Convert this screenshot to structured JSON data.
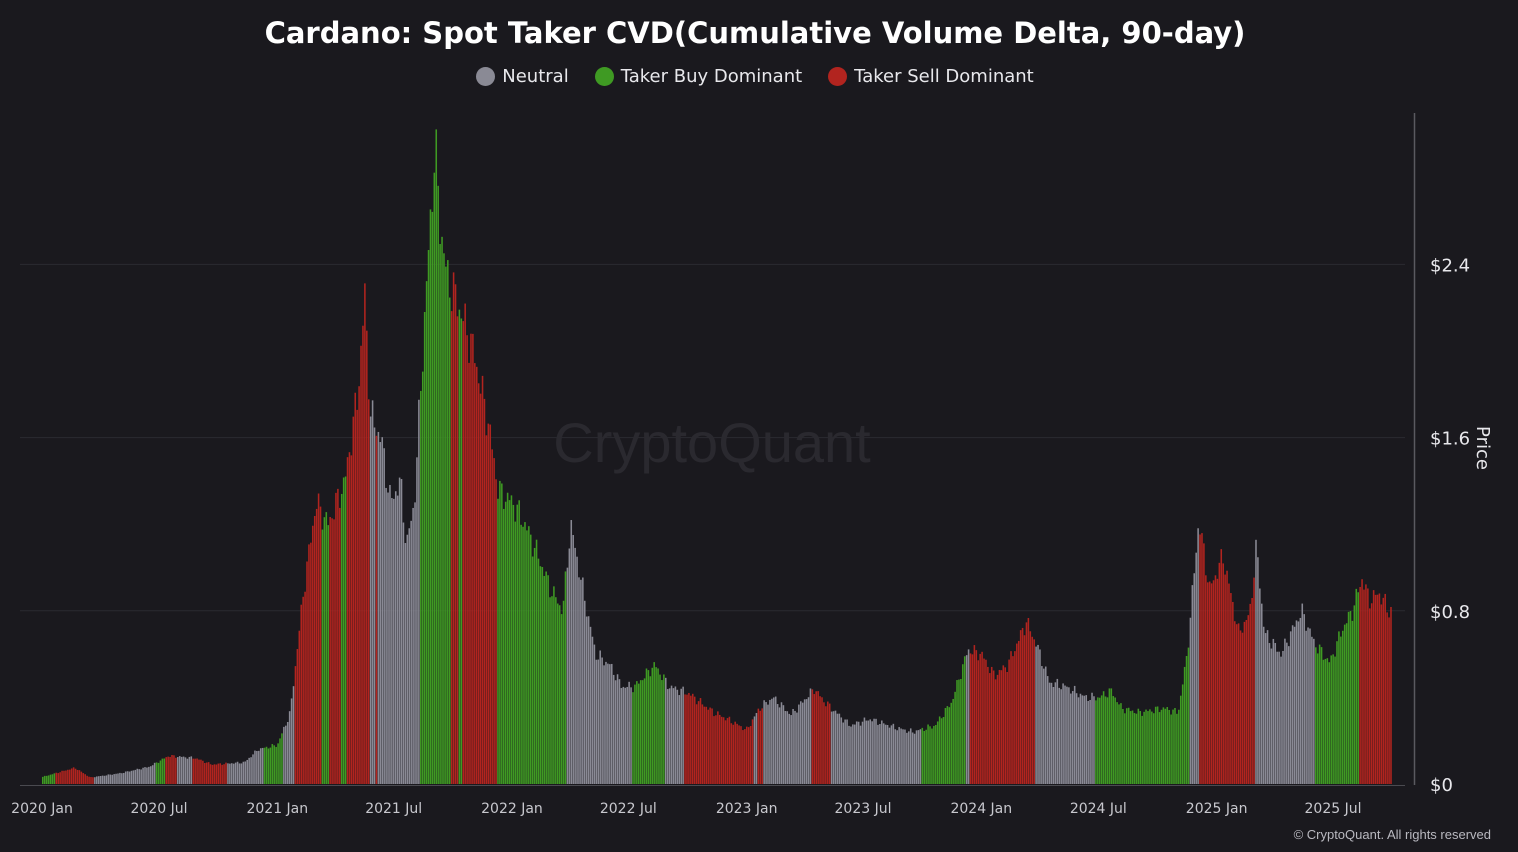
{
  "chart_data": {
    "type": "bar",
    "title": "Cardano: Spot Taker CVD(Cumulative Volume Delta, 90-day)",
    "ylabel": "Price",
    "ylim": [
      0,
      3.0
    ],
    "y_ticks": [
      "$0",
      "$0.8",
      "$1.6",
      "$2.4"
    ],
    "y_tick_values": [
      0,
      0.8,
      1.6,
      2.4
    ],
    "x_ticks": [
      "2020 Jan",
      "2020 Jul",
      "2021 Jan",
      "2021 Jul",
      "2022 Jan",
      "2022 Jul",
      "2023 Jan",
      "2023 Jul",
      "2024 Jan",
      "2024 Jul",
      "2025 Jan",
      "2025 Jul"
    ],
    "x_tick_dates": [
      "2020-01-01",
      "2020-07-01",
      "2021-01-01",
      "2021-07-01",
      "2022-01-01",
      "2022-07-01",
      "2023-01-01",
      "2023-07-01",
      "2024-01-01",
      "2024-07-01",
      "2025-01-01",
      "2025-07-01"
    ],
    "x_range": [
      "2020-01-01",
      "2025-10-01"
    ],
    "grid": true,
    "legend_position": "top-center",
    "watermark": "CryptoQuant",
    "series": [
      {
        "name": "Neutral",
        "color": "#8a8a95"
      },
      {
        "name": "Taker Buy Dominant",
        "color": "#3f9a23"
      },
      {
        "name": "Taker Sell Dominant",
        "color": "#b2241f"
      }
    ],
    "price_points": [
      [
        "2020-01-01",
        0.033
      ],
      [
        "2020-02-20",
        0.075
      ],
      [
        "2020-03-15",
        0.03
      ],
      [
        "2020-05-01",
        0.05
      ],
      [
        "2020-06-15",
        0.08
      ],
      [
        "2020-07-15",
        0.13
      ],
      [
        "2020-08-25",
        0.12
      ],
      [
        "2020-09-20",
        0.09
      ],
      [
        "2020-11-10",
        0.1
      ],
      [
        "2020-12-01",
        0.16
      ],
      [
        "2020-12-31",
        0.18
      ],
      [
        "2021-01-20",
        0.33
      ],
      [
        "2021-02-10",
        0.9
      ],
      [
        "2021-03-01",
        1.3
      ],
      [
        "2021-03-20",
        1.2
      ],
      [
        "2021-04-15",
        1.4
      ],
      [
        "2021-05-05",
        1.8
      ],
      [
        "2021-05-16",
        2.25
      ],
      [
        "2021-05-25",
        1.7
      ],
      [
        "2021-06-10",
        1.6
      ],
      [
        "2021-06-25",
        1.3
      ],
      [
        "2021-07-10",
        1.4
      ],
      [
        "2021-07-20",
        1.1
      ],
      [
        "2021-08-01",
        1.3
      ],
      [
        "2021-08-15",
        2.05
      ],
      [
        "2021-08-28",
        2.7
      ],
      [
        "2021-09-02",
        2.95
      ],
      [
        "2021-09-10",
        2.6
      ],
      [
        "2021-09-20",
        2.35
      ],
      [
        "2021-10-10",
        2.2
      ],
      [
        "2021-11-01",
        2.0
      ],
      [
        "2021-11-25",
        1.65
      ],
      [
        "2021-12-10",
        1.35
      ],
      [
        "2022-01-01",
        1.3
      ],
      [
        "2022-01-20",
        1.2
      ],
      [
        "2022-02-10",
        1.05
      ],
      [
        "2022-03-01",
        0.9
      ],
      [
        "2022-03-20",
        0.8
      ],
      [
        "2022-04-01",
        1.2
      ],
      [
        "2022-04-20",
        0.9
      ],
      [
        "2022-05-10",
        0.6
      ],
      [
        "2022-06-01",
        0.55
      ],
      [
        "2022-06-20",
        0.45
      ],
      [
        "2022-07-10",
        0.45
      ],
      [
        "2022-08-10",
        0.55
      ],
      [
        "2022-09-01",
        0.45
      ],
      [
        "2022-10-01",
        0.42
      ],
      [
        "2022-11-10",
        0.33
      ],
      [
        "2022-12-01",
        0.3
      ],
      [
        "2022-12-31",
        0.25
      ],
      [
        "2023-01-20",
        0.35
      ],
      [
        "2023-02-10",
        0.4
      ],
      [
        "2023-03-10",
        0.32
      ],
      [
        "2023-04-15",
        0.44
      ],
      [
        "2023-05-01",
        0.38
      ],
      [
        "2023-06-10",
        0.27
      ],
      [
        "2023-07-10",
        0.3
      ],
      [
        "2023-08-20",
        0.26
      ],
      [
        "2023-09-15",
        0.24
      ],
      [
        "2023-10-20",
        0.27
      ],
      [
        "2023-11-15",
        0.38
      ],
      [
        "2023-12-10",
        0.62
      ],
      [
        "2023-12-31",
        0.6
      ],
      [
        "2024-01-20",
        0.5
      ],
      [
        "2024-02-10",
        0.55
      ],
      [
        "2024-03-10",
        0.75
      ],
      [
        "2024-03-25",
        0.65
      ],
      [
        "2024-04-15",
        0.47
      ],
      [
        "2024-05-10",
        0.45
      ],
      [
        "2024-06-10",
        0.4
      ],
      [
        "2024-07-01",
        0.4
      ],
      [
        "2024-07-20",
        0.43
      ],
      [
        "2024-08-05",
        0.35
      ],
      [
        "2024-09-01",
        0.33
      ],
      [
        "2024-10-10",
        0.35
      ],
      [
        "2024-11-01",
        0.33
      ],
      [
        "2024-11-15",
        0.6
      ],
      [
        "2024-12-03",
        1.22
      ],
      [
        "2024-12-20",
        0.9
      ],
      [
        "2025-01-10",
        1.05
      ],
      [
        "2025-02-03",
        0.7
      ],
      [
        "2025-02-20",
        0.78
      ],
      [
        "2025-03-03",
        1.1
      ],
      [
        "2025-03-15",
        0.7
      ],
      [
        "2025-04-10",
        0.6
      ],
      [
        "2025-05-12",
        0.8
      ],
      [
        "2025-06-01",
        0.65
      ],
      [
        "2025-06-25",
        0.56
      ],
      [
        "2025-07-15",
        0.72
      ],
      [
        "2025-07-30",
        0.8
      ],
      [
        "2025-08-14",
        0.95
      ],
      [
        "2025-08-25",
        0.85
      ],
      [
        "2025-09-10",
        0.88
      ],
      [
        "2025-09-25",
        0.8
      ]
    ],
    "category_segments": [
      [
        "2020-01-01",
        "2020-01-20",
        "Taker Buy Dominant"
      ],
      [
        "2020-01-20",
        "2020-03-20",
        "Taker Sell Dominant"
      ],
      [
        "2020-03-20",
        "2020-06-25",
        "Neutral"
      ],
      [
        "2020-06-25",
        "2020-07-10",
        "Taker Buy Dominant"
      ],
      [
        "2020-07-10",
        "2020-07-28",
        "Taker Sell Dominant"
      ],
      [
        "2020-07-28",
        "2020-08-20",
        "Neutral"
      ],
      [
        "2020-08-20",
        "2020-10-15",
        "Taker Sell Dominant"
      ],
      [
        "2020-10-15",
        "2020-12-10",
        "Neutral"
      ],
      [
        "2020-12-10",
        "2021-01-10",
        "Taker Buy Dominant"
      ],
      [
        "2021-01-10",
        "2021-01-28",
        "Neutral"
      ],
      [
        "2021-01-28",
        "2021-03-10",
        "Taker Sell Dominant"
      ],
      [
        "2021-03-10",
        "2021-03-22",
        "Taker Buy Dominant"
      ],
      [
        "2021-03-22",
        "2021-04-10",
        "Taker Sell Dominant"
      ],
      [
        "2021-04-10",
        "2021-04-18",
        "Taker Buy Dominant"
      ],
      [
        "2021-04-18",
        "2021-05-25",
        "Taker Sell Dominant"
      ],
      [
        "2021-05-25",
        "2021-06-01",
        "Neutral"
      ],
      [
        "2021-06-01",
        "2021-06-05",
        "Taker Sell Dominant"
      ],
      [
        "2021-06-05",
        "2021-08-10",
        "Neutral"
      ],
      [
        "2021-08-10",
        "2021-09-26",
        "Taker Buy Dominant"
      ],
      [
        "2021-09-26",
        "2021-10-08",
        "Taker Sell Dominant"
      ],
      [
        "2021-10-08",
        "2021-10-14",
        "Taker Buy Dominant"
      ],
      [
        "2021-10-14",
        "2021-12-08",
        "Taker Sell Dominant"
      ],
      [
        "2021-12-08",
        "2022-03-25",
        "Taker Buy Dominant"
      ],
      [
        "2022-03-25",
        "2022-07-05",
        "Neutral"
      ],
      [
        "2022-07-05",
        "2022-08-25",
        "Taker Buy Dominant"
      ],
      [
        "2022-08-25",
        "2022-09-25",
        "Neutral"
      ],
      [
        "2022-09-25",
        "2023-01-10",
        "Taker Sell Dominant"
      ],
      [
        "2023-01-10",
        "2023-01-18",
        "Neutral"
      ],
      [
        "2023-01-18",
        "2023-01-25",
        "Taker Sell Dominant"
      ],
      [
        "2023-01-25",
        "2023-04-10",
        "Neutral"
      ],
      [
        "2023-04-10",
        "2023-05-10",
        "Taker Sell Dominant"
      ],
      [
        "2023-05-10",
        "2023-09-30",
        "Neutral"
      ],
      [
        "2023-09-30",
        "2023-12-08",
        "Taker Buy Dominant"
      ],
      [
        "2023-12-08",
        "2023-12-12",
        "Neutral"
      ],
      [
        "2023-12-12",
        "2024-03-25",
        "Taker Sell Dominant"
      ],
      [
        "2024-03-25",
        "2024-06-25",
        "Neutral"
      ],
      [
        "2024-06-25",
        "2024-11-20",
        "Taker Buy Dominant"
      ],
      [
        "2024-11-20",
        "2024-12-03",
        "Neutral"
      ],
      [
        "2024-12-03",
        "2025-02-28",
        "Taker Sell Dominant"
      ],
      [
        "2025-02-28",
        "2025-06-01",
        "Neutral"
      ],
      [
        "2025-06-01",
        "2025-08-10",
        "Taker Buy Dominant"
      ],
      [
        "2025-08-10",
        "2025-09-30",
        "Taker Sell Dominant"
      ]
    ]
  },
  "footer": {
    "copyright": "© CryptoQuant. All rights reserved"
  }
}
